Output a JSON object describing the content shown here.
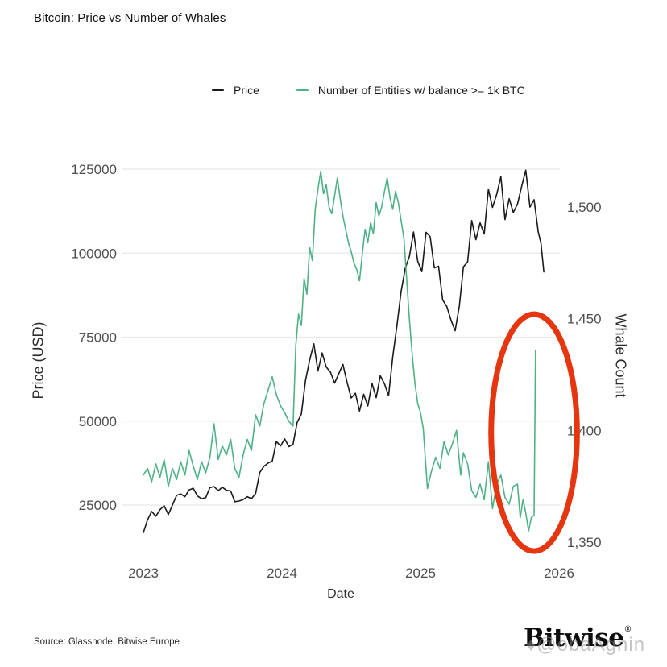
{
  "page": {
    "title": "Bitcoin: Price vs Number of Whales",
    "source": "Source: Glassnode, Bitwise Europe",
    "logo_text": "Bitwise",
    "logo_reg_mark": "®",
    "watermark": "♦@obaAgnin"
  },
  "chart_data": {
    "type": "line",
    "title": "Bitcoin: Price vs Number of Whales",
    "grid": "horizontal-only",
    "legend_position": "top-center",
    "x": {
      "label": "Date",
      "range": [
        2023.0,
        2026.0
      ],
      "ticks": [
        {
          "v": 2023,
          "label": "2023"
        },
        {
          "v": 2024,
          "label": "2024"
        },
        {
          "v": 2025,
          "label": "2025"
        },
        {
          "v": 2026,
          "label": "2026"
        }
      ]
    },
    "y_left": {
      "label": "Price (USD)",
      "range": [
        15000,
        130000
      ],
      "ticks": [
        {
          "v": 25000,
          "label": "25000"
        },
        {
          "v": 50000,
          "label": "50000"
        },
        {
          "v": 75000,
          "label": "75000"
        },
        {
          "v": 100000,
          "label": "100000"
        },
        {
          "v": 125000,
          "label": "125000"
        }
      ]
    },
    "y_right": {
      "label": "Whale Count",
      "range": [
        1345,
        1520
      ],
      "ticks": [
        {
          "v": 1350,
          "label": "1,350"
        },
        {
          "v": 1400,
          "label": "1,400"
        },
        {
          "v": 1450,
          "label": "1,450"
        },
        {
          "v": 1500,
          "label": "1,500"
        }
      ]
    },
    "series": [
      {
        "name": "Price",
        "axis": "left",
        "color": "#1b1b1b",
        "points": [
          [
            2023.0,
            16800
          ],
          [
            2023.03,
            20600
          ],
          [
            2023.06,
            23100
          ],
          [
            2023.09,
            21700
          ],
          [
            2023.12,
            23600
          ],
          [
            2023.15,
            24800
          ],
          [
            2023.18,
            22200
          ],
          [
            2023.21,
            25000
          ],
          [
            2023.24,
            27900
          ],
          [
            2023.27,
            28300
          ],
          [
            2023.3,
            27500
          ],
          [
            2023.33,
            29500
          ],
          [
            2023.36,
            30000
          ],
          [
            2023.39,
            27700
          ],
          [
            2023.42,
            26900
          ],
          [
            2023.45,
            27200
          ],
          [
            2023.48,
            30200
          ],
          [
            2023.51,
            30500
          ],
          [
            2023.54,
            29300
          ],
          [
            2023.57,
            30300
          ],
          [
            2023.6,
            29400
          ],
          [
            2023.63,
            29200
          ],
          [
            2023.66,
            26000
          ],
          [
            2023.69,
            26200
          ],
          [
            2023.72,
            26600
          ],
          [
            2023.75,
            27500
          ],
          [
            2023.78,
            26900
          ],
          [
            2023.81,
            28400
          ],
          [
            2023.84,
            34700
          ],
          [
            2023.87,
            36500
          ],
          [
            2023.9,
            37500
          ],
          [
            2023.93,
            38100
          ],
          [
            2023.96,
            43900
          ],
          [
            2023.99,
            42600
          ],
          [
            2024.02,
            44700
          ],
          [
            2024.05,
            42400
          ],
          [
            2024.08,
            43100
          ],
          [
            2024.11,
            49600
          ],
          [
            2024.14,
            52100
          ],
          [
            2024.17,
            62000
          ],
          [
            2024.2,
            68200
          ],
          [
            2024.23,
            73000
          ],
          [
            2024.26,
            64900
          ],
          [
            2024.29,
            70300
          ],
          [
            2024.32,
            66100
          ],
          [
            2024.35,
            64600
          ],
          [
            2024.38,
            61300
          ],
          [
            2024.41,
            64100
          ],
          [
            2024.44,
            66900
          ],
          [
            2024.47,
            61600
          ],
          [
            2024.5,
            56900
          ],
          [
            2024.53,
            58300
          ],
          [
            2024.56,
            53000
          ],
          [
            2024.59,
            58000
          ],
          [
            2024.62,
            54500
          ],
          [
            2024.65,
            61200
          ],
          [
            2024.68,
            57000
          ],
          [
            2024.71,
            63500
          ],
          [
            2024.74,
            61100
          ],
          [
            2024.77,
            57600
          ],
          [
            2024.8,
            69200
          ],
          [
            2024.83,
            78500
          ],
          [
            2024.86,
            88500
          ],
          [
            2024.89,
            95500
          ],
          [
            2024.92,
            99000
          ],
          [
            2024.95,
            106300
          ],
          [
            2024.98,
            97500
          ],
          [
            2025.01,
            94500
          ],
          [
            2025.04,
            106200
          ],
          [
            2025.07,
            104900
          ],
          [
            2025.1,
            95600
          ],
          [
            2025.13,
            96100
          ],
          [
            2025.16,
            86100
          ],
          [
            2025.19,
            84100
          ],
          [
            2025.22,
            80100
          ],
          [
            2025.25,
            76900
          ],
          [
            2025.28,
            84200
          ],
          [
            2025.31,
            95900
          ],
          [
            2025.34,
            97400
          ],
          [
            2025.37,
            109700
          ],
          [
            2025.4,
            104000
          ],
          [
            2025.43,
            109000
          ],
          [
            2025.46,
            105700
          ],
          [
            2025.49,
            119000
          ],
          [
            2025.52,
            113600
          ],
          [
            2025.55,
            117500
          ],
          [
            2025.58,
            122800
          ],
          [
            2025.61,
            110000
          ],
          [
            2025.64,
            116200
          ],
          [
            2025.67,
            112100
          ],
          [
            2025.7,
            114600
          ],
          [
            2025.73,
            119900
          ],
          [
            2025.76,
            124700
          ],
          [
            2025.79,
            113700
          ],
          [
            2025.82,
            115900
          ],
          [
            2025.85,
            106300
          ],
          [
            2025.87,
            102900
          ],
          [
            2025.89,
            94400
          ]
        ]
      },
      {
        "name": "Number of Entities w/ balance >= 1k BTC",
        "axis": "right",
        "color": "#4fb286",
        "points": [
          [
            2023.0,
            1380
          ],
          [
            2023.03,
            1383
          ],
          [
            2023.06,
            1377
          ],
          [
            2023.09,
            1385
          ],
          [
            2023.12,
            1379
          ],
          [
            2023.15,
            1387
          ],
          [
            2023.18,
            1375
          ],
          [
            2023.21,
            1383
          ],
          [
            2023.24,
            1378
          ],
          [
            2023.27,
            1386
          ],
          [
            2023.3,
            1380
          ],
          [
            2023.33,
            1391
          ],
          [
            2023.36,
            1384
          ],
          [
            2023.39,
            1378
          ],
          [
            2023.42,
            1386
          ],
          [
            2023.45,
            1381
          ],
          [
            2023.48,
            1388
          ],
          [
            2023.51,
            1403
          ],
          [
            2023.54,
            1387
          ],
          [
            2023.57,
            1393
          ],
          [
            2023.6,
            1389
          ],
          [
            2023.63,
            1396
          ],
          [
            2023.66,
            1383
          ],
          [
            2023.69,
            1379
          ],
          [
            2023.72,
            1389
          ],
          [
            2023.75,
            1396
          ],
          [
            2023.78,
            1391
          ],
          [
            2023.81,
            1407
          ],
          [
            2023.84,
            1402
          ],
          [
            2023.87,
            1412
          ],
          [
            2023.9,
            1418
          ],
          [
            2023.93,
            1424
          ],
          [
            2023.96,
            1416
          ],
          [
            2023.99,
            1411
          ],
          [
            2024.02,
            1408
          ],
          [
            2024.05,
            1404
          ],
          [
            2024.08,
            1402
          ],
          [
            2024.1,
            1438
          ],
          [
            2024.12,
            1452
          ],
          [
            2024.14,
            1447
          ],
          [
            2024.16,
            1468
          ],
          [
            2024.18,
            1461
          ],
          [
            2024.2,
            1482
          ],
          [
            2024.22,
            1476
          ],
          [
            2024.24,
            1499
          ],
          [
            2024.26,
            1508
          ],
          [
            2024.28,
            1516
          ],
          [
            2024.3,
            1506
          ],
          [
            2024.32,
            1510
          ],
          [
            2024.34,
            1500
          ],
          [
            2024.36,
            1497
          ],
          [
            2024.38,
            1505
          ],
          [
            2024.4,
            1513
          ],
          [
            2024.42,
            1504
          ],
          [
            2024.44,
            1496
          ],
          [
            2024.46,
            1490
          ],
          [
            2024.48,
            1484
          ],
          [
            2024.5,
            1480
          ],
          [
            2024.52,
            1475
          ],
          [
            2024.54,
            1472
          ],
          [
            2024.56,
            1467
          ],
          [
            2024.58,
            1479
          ],
          [
            2024.6,
            1490
          ],
          [
            2024.62,
            1484
          ],
          [
            2024.64,
            1493
          ],
          [
            2024.66,
            1488
          ],
          [
            2024.68,
            1502
          ],
          [
            2024.7,
            1496
          ],
          [
            2024.72,
            1500
          ],
          [
            2024.74,
            1507
          ],
          [
            2024.76,
            1513
          ],
          [
            2024.78,
            1504
          ],
          [
            2024.8,
            1499
          ],
          [
            2024.82,
            1507
          ],
          [
            2024.84,
            1502
          ],
          [
            2024.86,
            1494
          ],
          [
            2024.88,
            1486
          ],
          [
            2024.9,
            1468
          ],
          [
            2024.92,
            1450
          ],
          [
            2024.94,
            1434
          ],
          [
            2024.96,
            1421
          ],
          [
            2024.98,
            1412
          ],
          [
            2025.0,
            1408
          ],
          [
            2025.02,
            1401
          ],
          [
            2025.05,
            1374
          ],
          [
            2025.08,
            1382
          ],
          [
            2025.11,
            1388
          ],
          [
            2025.14,
            1383
          ],
          [
            2025.17,
            1395
          ],
          [
            2025.2,
            1389
          ],
          [
            2025.23,
            1394
          ],
          [
            2025.26,
            1400
          ],
          [
            2025.29,
            1380
          ],
          [
            2025.31,
            1390
          ],
          [
            2025.34,
            1385
          ],
          [
            2025.37,
            1373
          ],
          [
            2025.4,
            1370
          ],
          [
            2025.43,
            1376
          ],
          [
            2025.46,
            1369
          ],
          [
            2025.49,
            1386
          ],
          [
            2025.52,
            1365
          ],
          [
            2025.55,
            1376
          ],
          [
            2025.58,
            1380
          ],
          [
            2025.61,
            1370
          ],
          [
            2025.64,
            1367
          ],
          [
            2025.67,
            1375
          ],
          [
            2025.7,
            1376
          ],
          [
            2025.72,
            1361
          ],
          [
            2025.74,
            1369
          ],
          [
            2025.76,
            1363
          ],
          [
            2025.78,
            1355
          ],
          [
            2025.8,
            1361
          ],
          [
            2025.82,
            1362
          ],
          [
            2025.83,
            1436
          ]
        ]
      }
    ],
    "annotations": [
      {
        "type": "ellipse",
        "axis": "right",
        "x": 2025.82,
        "y": 1399,
        "rx_years": 0.31,
        "ry_count": 53,
        "color": "#e5360f",
        "stroke_width": 7
      }
    ]
  }
}
